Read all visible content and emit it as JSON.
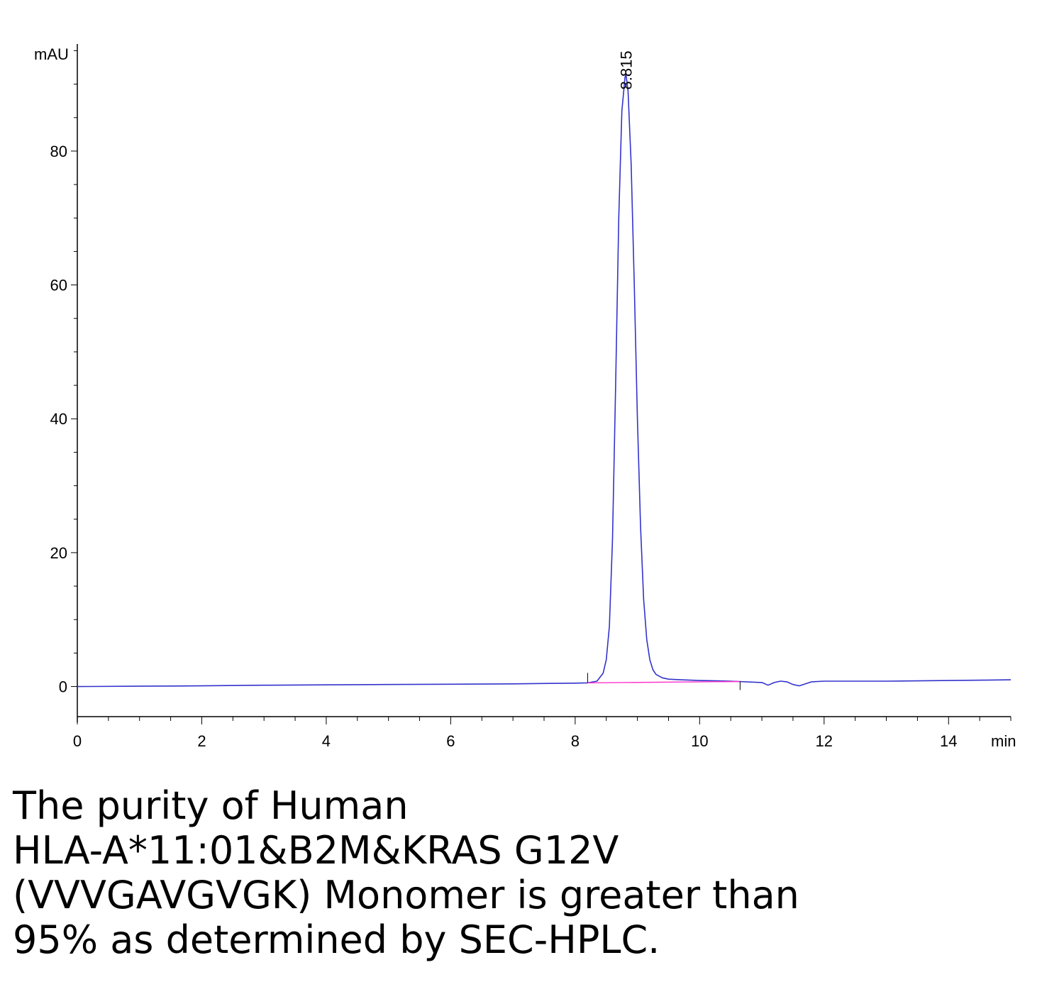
{
  "chart_data": {
    "type": "line",
    "ylabel": "mAU",
    "xlabel": "min",
    "xlim": [
      0,
      15
    ],
    "ylim": [
      -4.5,
      96
    ],
    "x_ticks": [
      0,
      2,
      4,
      6,
      8,
      10,
      12,
      14
    ],
    "y_ticks": [
      0,
      20,
      40,
      60,
      80
    ],
    "peak_label": "8.815",
    "peak": {
      "x": 8.815,
      "y": 91.5
    },
    "series": [
      {
        "color": "#3333cc",
        "x": [
          0,
          1,
          2,
          3,
          4,
          5,
          6,
          7,
          8,
          8.2,
          8.35,
          8.45,
          8.5,
          8.55,
          8.6,
          8.65,
          8.7,
          8.75,
          8.8,
          8.815,
          8.85,
          8.9,
          8.95,
          9.0,
          9.05,
          9.1,
          9.15,
          9.2,
          9.25,
          9.3,
          9.4,
          9.5,
          9.7,
          10.0,
          10.5,
          11.0,
          11.1,
          11.2,
          11.3,
          11.4,
          11.5,
          11.6,
          11.7,
          11.8,
          12.0,
          13.0,
          14.0,
          15.0
        ],
        "y": [
          0.0,
          0.05,
          0.1,
          0.2,
          0.25,
          0.3,
          0.35,
          0.4,
          0.5,
          0.55,
          0.8,
          2.0,
          4.0,
          9.0,
          22.0,
          45.0,
          70.0,
          86.0,
          91.0,
          91.5,
          89.0,
          78.0,
          60.0,
          40.0,
          24.0,
          13.0,
          7.0,
          4.0,
          2.5,
          1.8,
          1.3,
          1.1,
          1.0,
          0.9,
          0.8,
          0.6,
          0.2,
          0.6,
          0.8,
          0.7,
          0.3,
          0.1,
          0.4,
          0.7,
          0.8,
          0.8,
          0.9,
          1.0
        ]
      },
      {
        "color": "#ff33cc",
        "x": [
          8.2,
          10.65
        ],
        "y": [
          0.55,
          0.75
        ]
      }
    ]
  },
  "caption": {
    "lines": [
      "The purity of Human",
      "HLA-A*11:01&B2M&KRAS G12V",
      "(VVVGAVGVGK) Monomer is greater than",
      "95% as determined by SEC-HPLC."
    ]
  }
}
